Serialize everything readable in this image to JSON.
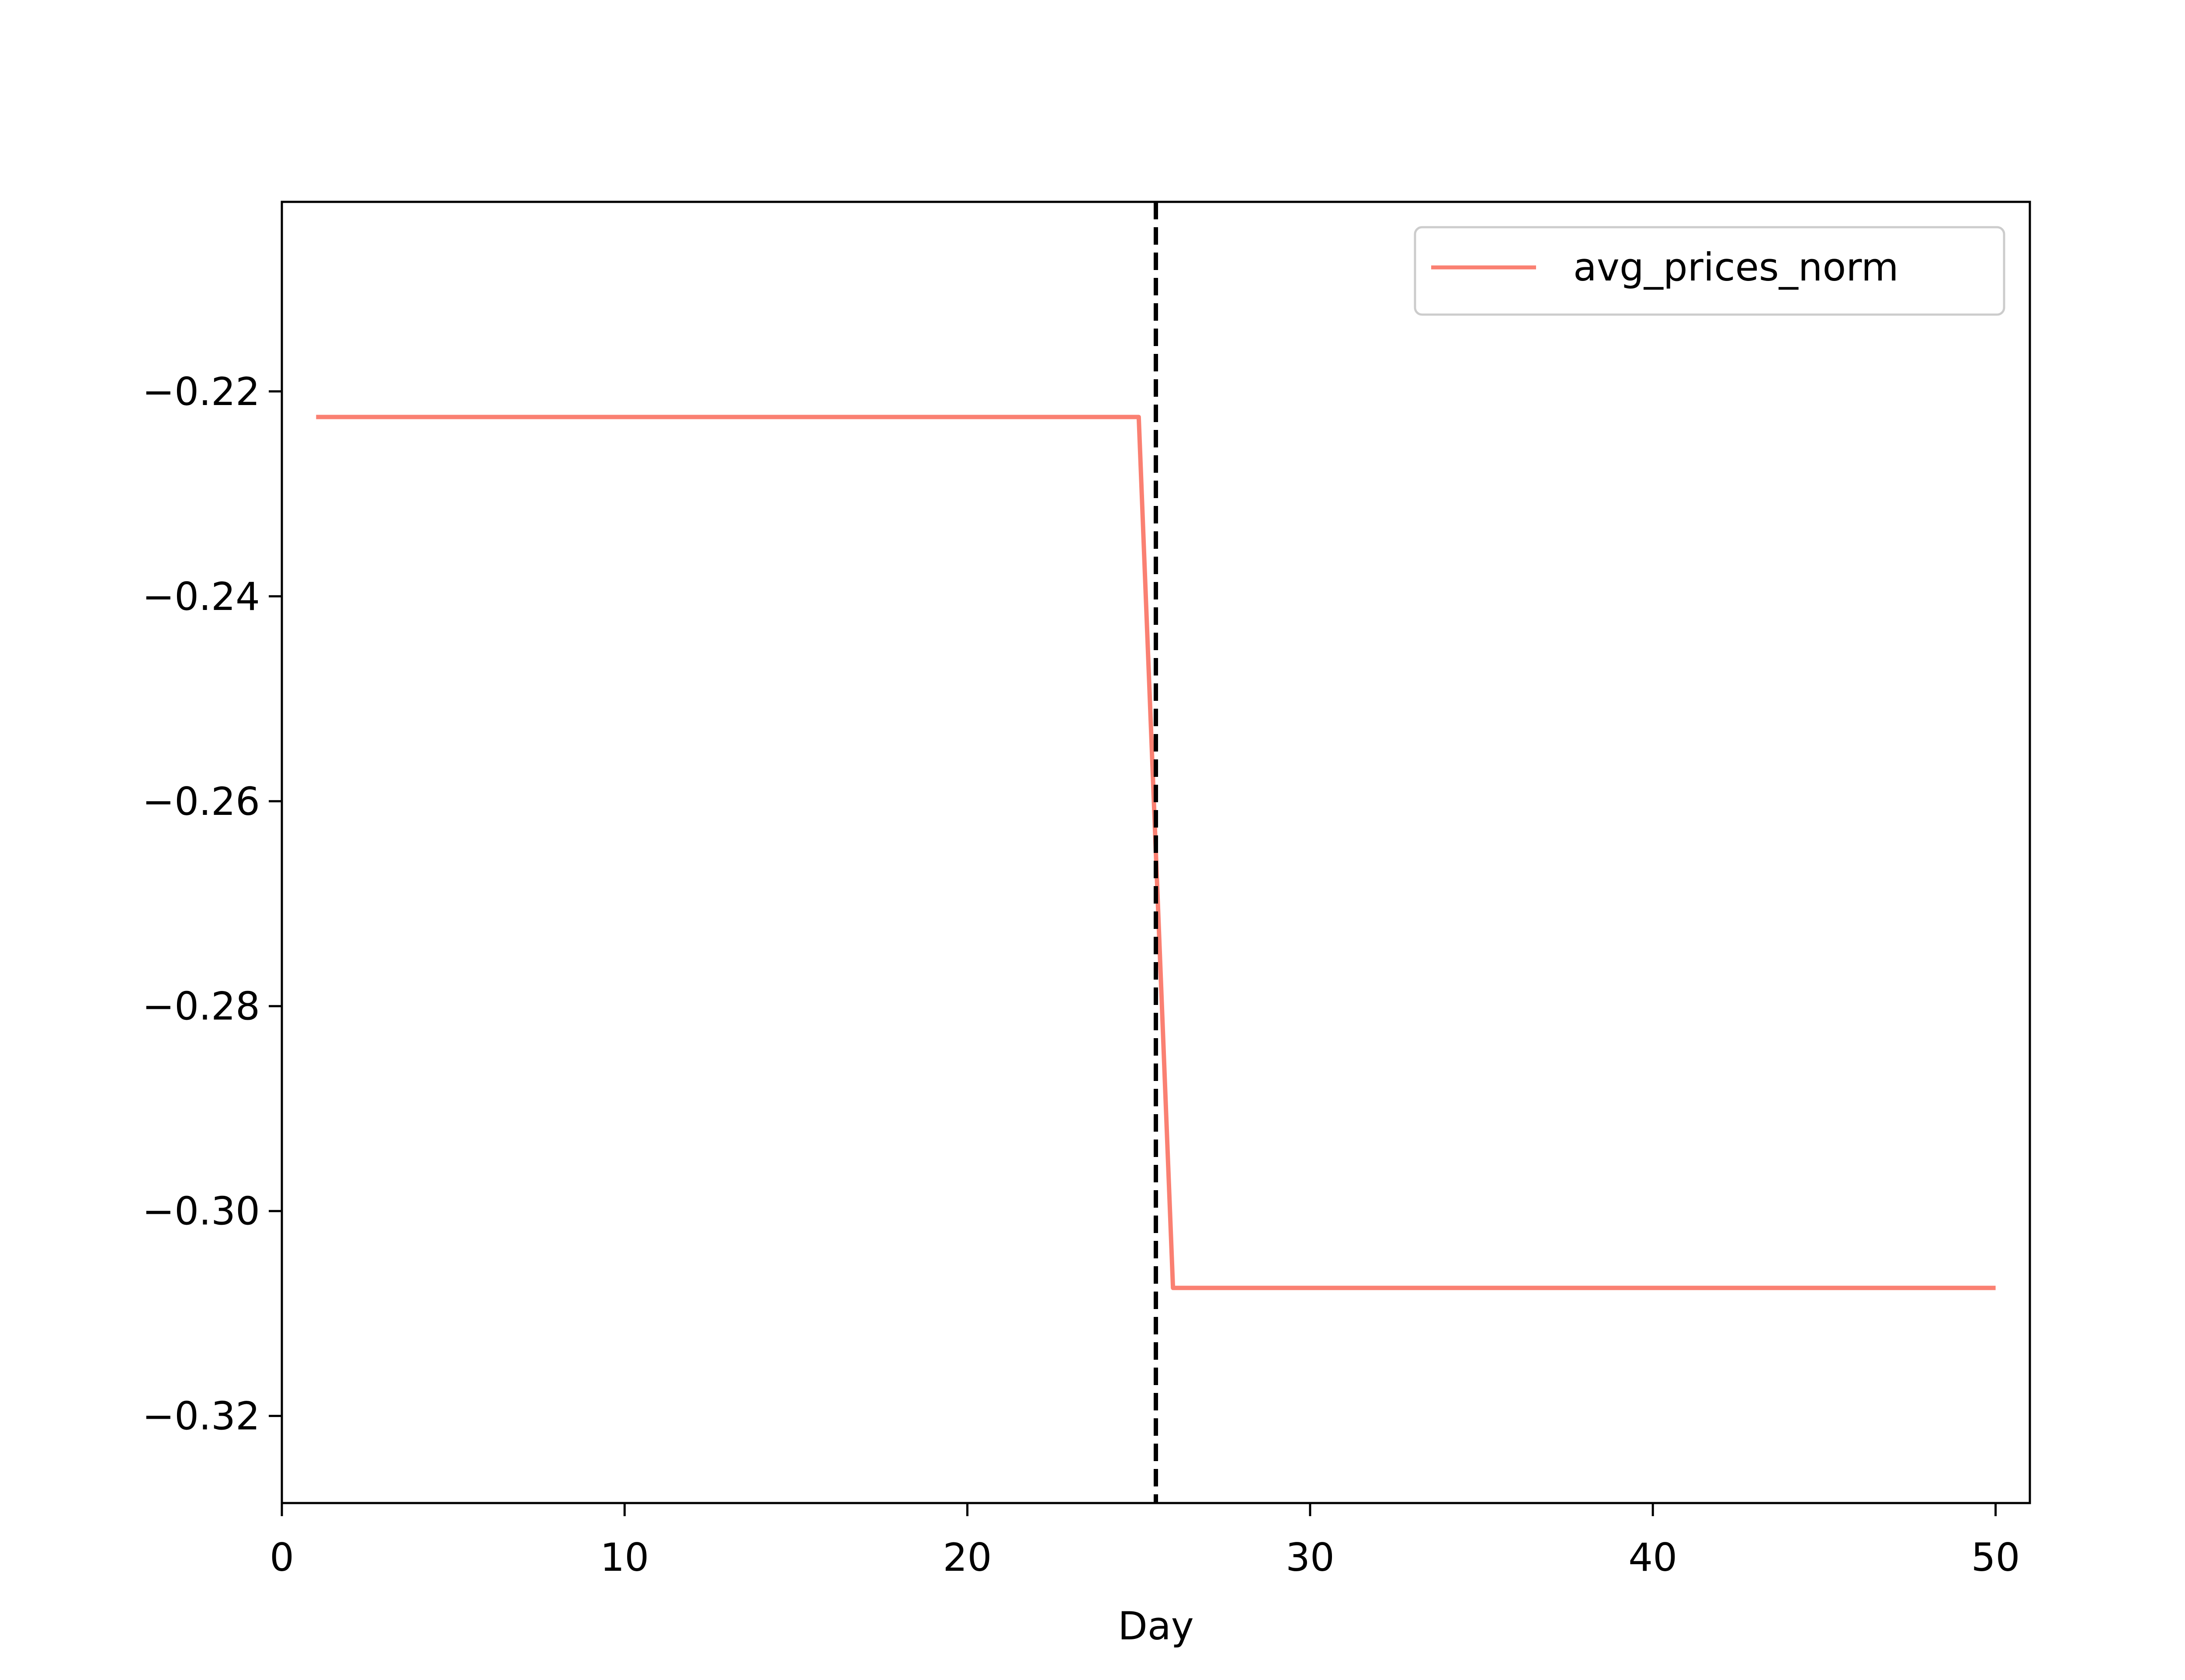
{
  "chart_data": {
    "type": "line",
    "title": "",
    "xlabel": "Day",
    "ylabel": "",
    "xlim": [
      0,
      51
    ],
    "ylim": [
      -0.3285,
      -0.2015
    ],
    "grid": false,
    "legend_position": "top-right",
    "x_ticks": [
      0,
      10,
      20,
      30,
      40,
      50
    ],
    "x_tick_labels": [
      "0",
      "10",
      "20",
      "30",
      "40",
      "50"
    ],
    "y_ticks": [
      -0.22,
      -0.24,
      -0.26,
      -0.28,
      -0.3,
      -0.32
    ],
    "y_tick_labels": [
      "−0.22",
      "−0.24",
      "−0.26",
      "−0.28",
      "−0.30",
      "−0.32"
    ],
    "series": [
      {
        "name": "avg_prices_norm",
        "color": "#fa8072",
        "x": [
          1,
          25,
          26,
          50
        ],
        "values": [
          -0.2225,
          -0.2225,
          -0.3075,
          -0.3075
        ]
      }
    ],
    "annotations": [
      {
        "kind": "vertical-dashed-line",
        "x": 25.5,
        "color": "#000000"
      }
    ]
  }
}
